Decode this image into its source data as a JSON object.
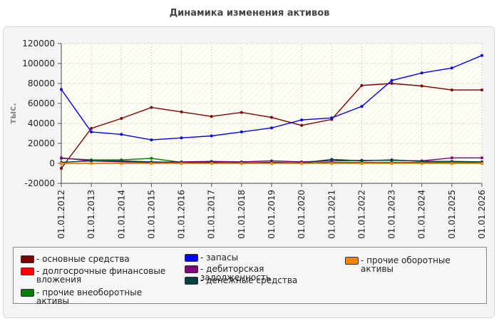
{
  "page_title": "Динамика изменения активов",
  "colors": {
    "background": "#ffffff",
    "panel": "#f4f4f4",
    "plot_area": "#fffff5"
  },
  "chart_data": {
    "type": "line",
    "title": "Динамика изменения активов",
    "xlabel": "",
    "ylabel": "тыс.",
    "ylim": [
      -20000,
      120000
    ],
    "yticks": [
      -20000,
      0,
      20000,
      40000,
      60000,
      80000,
      100000,
      120000
    ],
    "grid": true,
    "legend_position": "bottom",
    "categories": [
      "01.01.2012",
      "01.01.2013",
      "01.01.2014",
      "01.01.2015",
      "01.01.2016",
      "01.01.2017",
      "01.01.2018",
      "01.01.2019",
      "01.01.2020",
      "01.01.2021",
      "01.01.2022",
      "01.01.2023",
      "01.01.2024",
      "01.01.2025",
      "01.01.2026"
    ],
    "series": [
      {
        "name": "- основные средства",
        "color": "#800000",
        "values": [
          -5000,
          35000,
          45000,
          56000,
          51500,
          47000,
          51000,
          46000,
          38000,
          44000,
          78000,
          80000,
          77500,
          73500,
          73500
        ]
      },
      {
        "name": "- долгосрочные финансовые вложения",
        "color": "#ff0000",
        "values": [
          0,
          0,
          0,
          0,
          0,
          0,
          0,
          0,
          0,
          0,
          0,
          0,
          0,
          0,
          0
        ]
      },
      {
        "name": "- прочие внеоборотные активы",
        "color": "#008000",
        "values": [
          5000,
          3500,
          3500,
          5000,
          1000,
          500,
          500,
          500,
          500,
          1000,
          1000,
          1000,
          1000,
          1000,
          1000
        ]
      },
      {
        "name": "- запасы",
        "color": "#0000ff",
        "values": [
          74000,
          31500,
          29000,
          23500,
          25500,
          27500,
          31500,
          35500,
          43500,
          45500,
          57000,
          83000,
          90500,
          95500,
          108000
        ]
      },
      {
        "name": "- дебиторская задолженность",
        "color": "#800080",
        "values": [
          5500,
          2500,
          1500,
          1000,
          1500,
          2000,
          1500,
          2500,
          1500,
          2500,
          3000,
          3000,
          2500,
          5500,
          5500
        ]
      },
      {
        "name": "- денежные средства",
        "color": "#004040",
        "values": [
          1000,
          2500,
          2500,
          1500,
          1000,
          1000,
          500,
          1000,
          500,
          4000,
          2500,
          3500,
          2000,
          2000,
          1500
        ]
      },
      {
        "name": "- прочие оборотные активы",
        "color": "#ff8000",
        "values": [
          0,
          0,
          0,
          0,
          0,
          0,
          0,
          0,
          0,
          0,
          0,
          0,
          0,
          0,
          0
        ]
      }
    ]
  }
}
